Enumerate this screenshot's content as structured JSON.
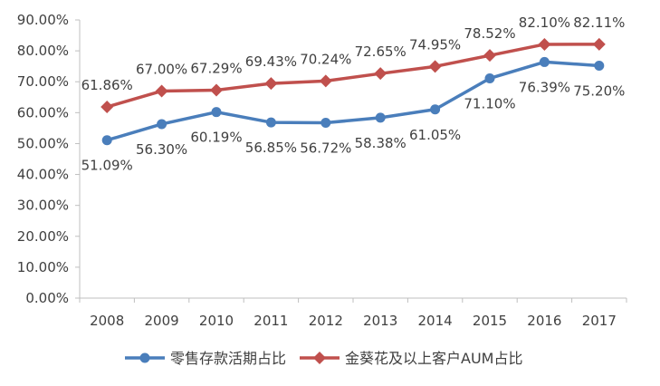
{
  "chart_data": {
    "type": "line",
    "title": "",
    "xlabel": "",
    "ylabel": "",
    "categories": [
      "2008",
      "2009",
      "2010",
      "2011",
      "2012",
      "2013",
      "2014",
      "2015",
      "2016",
      "2017"
    ],
    "ylim": [
      0,
      90
    ],
    "y_tick_labels": [
      "0.00%",
      "10.00%",
      "20.00%",
      "30.00%",
      "40.00%",
      "50.00%",
      "60.00%",
      "70.00%",
      "80.00%",
      "90.00%"
    ],
    "grid": false,
    "legend_position": "bottom",
    "series": [
      {
        "name": "零售存款活期占比",
        "color": "#4A7EBB",
        "marker": "circle",
        "values": [
          51.09,
          56.3,
          60.19,
          56.85,
          56.72,
          58.38,
          61.05,
          71.1,
          76.39,
          75.2
        ],
        "labels": [
          "51.09%",
          "56.30%",
          "60.19%",
          "56.85%",
          "56.72%",
          "58.38%",
          "61.05%",
          "71.10%",
          "76.39%",
          "75.20%"
        ],
        "label_position": "below"
      },
      {
        "name": "金葵花及以上客户AUM占比",
        "color": "#C0504D",
        "marker": "diamond",
        "values": [
          61.86,
          67.0,
          67.29,
          69.43,
          70.24,
          72.65,
          74.95,
          78.52,
          82.1,
          82.11
        ],
        "labels": [
          "61.86%",
          "67.00%",
          "67.29%",
          "69.43%",
          "70.24%",
          "72.65%",
          "74.95%",
          "78.52%",
          "82.10%",
          "82.11%"
        ],
        "label_position": "above"
      }
    ]
  }
}
